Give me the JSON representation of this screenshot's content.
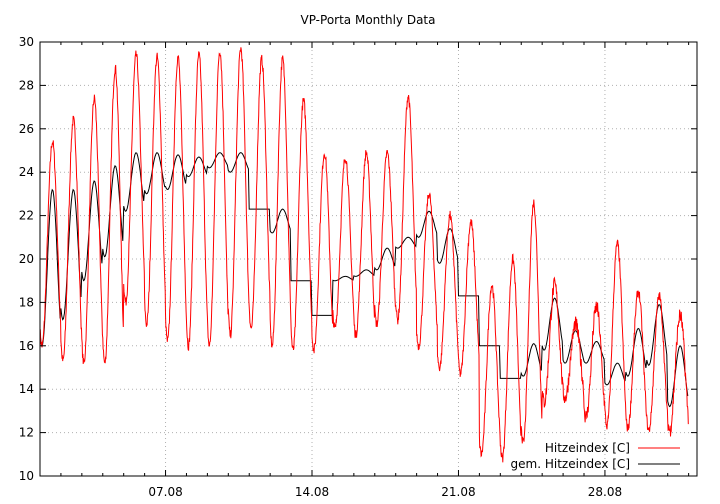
{
  "chart_data": {
    "type": "line",
    "title": "VP-Porta Monthly Data",
    "xlabel": "",
    "ylabel": "",
    "xlim": [
      0,
      31.4
    ],
    "ylim": [
      10,
      30
    ],
    "yticks": [
      10,
      12,
      14,
      16,
      18,
      20,
      22,
      24,
      26,
      28,
      30
    ],
    "xticks": [
      {
        "x": 6,
        "label": "07.08"
      },
      {
        "x": 13,
        "label": "14.08"
      },
      {
        "x": 20,
        "label": "21.08"
      },
      {
        "x": 27,
        "label": "28.08"
      }
    ],
    "grid": true,
    "legend_position": "bottom-right",
    "series": [
      {
        "name": "Hitzeindex [C]",
        "color": "#ff0000",
        "daily_min_max": [
          [
            16.0,
            25.4
          ],
          [
            15.3,
            26.4
          ],
          [
            15.2,
            27.4
          ],
          [
            15.2,
            28.8
          ],
          [
            18.0,
            29.4
          ],
          [
            17.0,
            29.3
          ],
          [
            16.2,
            29.3
          ],
          [
            16.0,
            29.4
          ],
          [
            16.0,
            29.6
          ],
          [
            16.5,
            29.7
          ],
          [
            16.8,
            29.2
          ],
          [
            16.0,
            29.2
          ],
          [
            15.8,
            27.3
          ],
          [
            15.8,
            24.9
          ],
          [
            16.8,
            24.7
          ],
          [
            16.5,
            24.9
          ],
          [
            17.0,
            24.9
          ],
          [
            17.2,
            27.5
          ],
          [
            16.0,
            23.0
          ],
          [
            15.0,
            22.0
          ],
          [
            14.7,
            21.7
          ],
          [
            11.0,
            18.8
          ],
          [
            10.8,
            20.0
          ],
          [
            11.5,
            22.6
          ],
          [
            13.4,
            18.8
          ],
          [
            13.6,
            17.0
          ],
          [
            12.7,
            17.8
          ],
          [
            12.3,
            20.7
          ],
          [
            12.2,
            18.5
          ],
          [
            12.1,
            18.3
          ],
          [
            12.1,
            17.4
          ]
        ]
      },
      {
        "name": "gem. Hitzeindex [C]",
        "color": "#000000",
        "daily_min_max": [
          [
            16.0,
            23.2
          ],
          [
            17.2,
            23.2
          ],
          [
            19.0,
            23.6
          ],
          [
            20.1,
            24.3
          ],
          [
            22.2,
            24.9
          ],
          [
            23.0,
            24.9
          ],
          [
            23.2,
            24.8
          ],
          [
            23.8,
            24.7
          ],
          [
            24.2,
            24.9
          ],
          [
            24.0,
            24.9
          ],
          [
            22.3,
            22.3
          ],
          [
            21.2,
            22.3
          ],
          [
            19.0,
            19.0
          ],
          [
            17.4,
            17.4
          ],
          [
            19.0,
            19.2
          ],
          [
            19.2,
            19.5
          ],
          [
            19.5,
            20.5
          ],
          [
            20.5,
            21.0
          ],
          [
            21.0,
            22.2
          ],
          [
            19.8,
            21.4
          ],
          [
            18.3,
            18.3
          ],
          [
            16.0,
            16.0
          ],
          [
            14.5,
            14.5
          ],
          [
            14.6,
            16.1
          ],
          [
            15.8,
            18.2
          ],
          [
            15.2,
            16.7
          ],
          [
            15.2,
            16.2
          ],
          [
            14.2,
            15.2
          ],
          [
            14.6,
            16.8
          ],
          [
            15.1,
            17.9
          ],
          [
            13.2,
            16.0
          ]
        ]
      }
    ]
  }
}
